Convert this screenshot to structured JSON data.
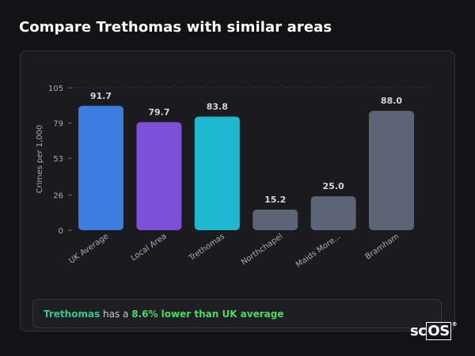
{
  "header": {
    "title": "Compare Trethomas with similar areas"
  },
  "chart_data": {
    "type": "bar",
    "categories": [
      "UK Average",
      "Local Area",
      "Trethomas",
      "Northchapel",
      "Maids More...",
      "Bramham"
    ],
    "values": [
      91.7,
      79.7,
      83.8,
      15.2,
      25.0,
      88.0
    ],
    "value_labels": [
      "91.7",
      "79.7",
      "83.8",
      "15.2",
      "25.0",
      "88.0"
    ],
    "colors": [
      "#3b7ddd",
      "#7b4fd6",
      "#1fb8d0",
      "#5c6575",
      "#5c6575",
      "#5c6575"
    ],
    "ylabel": "Crimes per 1,000",
    "yticks": [
      0,
      26,
      53,
      79,
      105
    ],
    "ylim": [
      0,
      105
    ],
    "grid": false
  },
  "summary": {
    "area": "Trethomas",
    "text_mid": " has a ",
    "highlight": "8.6% lower than UK average"
  },
  "brand": {
    "name": "sc",
    "boxed": "OS",
    "mark": "®"
  }
}
